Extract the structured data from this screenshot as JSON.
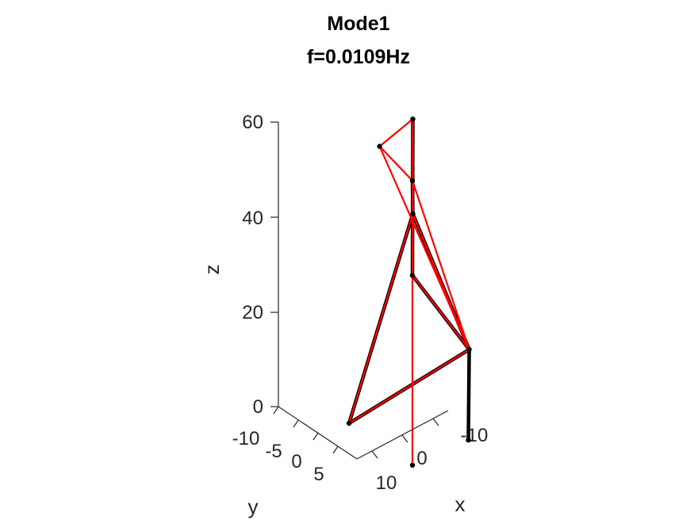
{
  "chart_data": {
    "type": "3d-line",
    "title": [
      "Mode1",
      "f=0.0109Hz"
    ],
    "xlabel": "x",
    "ylabel": "y",
    "zlabel": "z",
    "x_ticks": [
      "-10",
      "0",
      "10"
    ],
    "y_ticks": [
      "-10",
      "-5",
      "0",
      "5"
    ],
    "z_ticks": [
      "0",
      "20",
      "40",
      "60"
    ],
    "colors": {
      "undeformed": "#000000",
      "deformed": "#ff0000",
      "axis": "#262626"
    },
    "series": [
      {
        "color": "#000000",
        "segments": [
          [
            [
              7,
              -8,
              0
            ],
            [
              -9,
              10,
              20
            ]
          ],
          [
            [
              -9,
              10,
              20
            ],
            [
              -10,
              -5,
              40
            ]
          ],
          [
            [
              -9,
              10,
              20
            ],
            [
              7,
              8,
              40
            ]
          ],
          [
            [
              -10,
              -5,
              40
            ],
            [
              7,
              8,
              60
            ]
          ],
          [
            [
              7,
              8,
              40
            ],
            [
              -10,
              -5,
              60
            ]
          ],
          [
            [
              7,
              -8,
              0
            ],
            [
              -10,
              -5,
              40
            ]
          ],
          [
            [
              -9,
              10,
              20
            ],
            [
              -10,
              9,
              0
            ]
          ]
        ]
      },
      {
        "color": "#ff0000",
        "segments": [
          [
            [
              -9,
              10,
              20
            ],
            [
              -10,
              -5,
              40
            ]
          ],
          [
            [
              -9,
              10,
              20
            ],
            [
              7,
              8,
              40
            ]
          ],
          [
            [
              -9,
              10,
              20
            ],
            [
              7,
              -8,
              0
            ]
          ],
          [
            [
              -10,
              -5,
              40
            ],
            [
              7,
              8,
              40
            ]
          ],
          [
            [
              -10,
              -5,
              40
            ],
            [
              7,
              -8,
              0
            ]
          ],
          [
            [
              -10,
              -5,
              60
            ],
            [
              7,
              8,
              60
            ]
          ],
          [
            [
              -10,
              -5,
              60
            ],
            [
              -10,
              -5,
              40
            ]
          ],
          [
            [
              -10,
              -5,
              60
            ],
            [
              -3,
              -8,
              55
            ]
          ],
          [
            [
              7,
              8,
              60
            ],
            [
              -3,
              -8,
              55
            ]
          ],
          [
            [
              7,
              8,
              60
            ],
            [
              7,
              8,
              40
            ]
          ],
          [
            [
              7,
              8,
              40
            ],
            [
              7,
              8,
              0
            ]
          ],
          [
            [
              -3,
              -8,
              55
            ],
            [
              -9,
              10,
              20
            ]
          ],
          [
            [
              7,
              8,
              60
            ],
            [
              -9,
              10,
              20
            ]
          ]
        ]
      }
    ]
  }
}
